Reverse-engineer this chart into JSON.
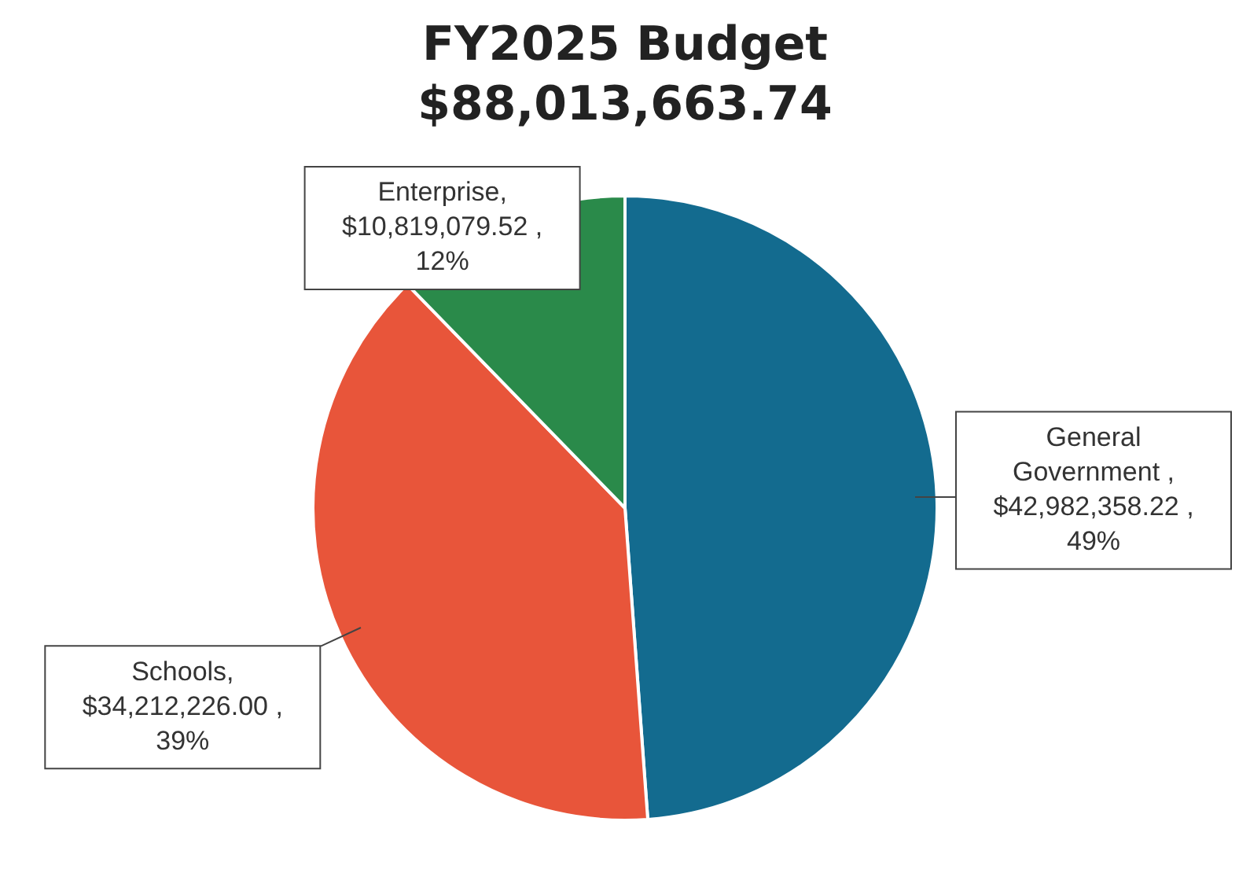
{
  "chart_data": {
    "type": "pie",
    "title": "FY2025 Budget",
    "subtitle": "$88,013,663.74",
    "categories": [
      "General Government",
      "Schools",
      "Enterprise"
    ],
    "values": [
      42982358.22,
      34212226.0,
      10819079.52
    ],
    "colors": [
      "#136b8f",
      "#e8553a",
      "#2a8a4a"
    ],
    "value_labels": [
      " , $42,982,358.22 , 49%",
      ", $34,212,226.00 , 39%",
      ", $10,819,079.52 , 12%"
    ],
    "legend": false
  }
}
